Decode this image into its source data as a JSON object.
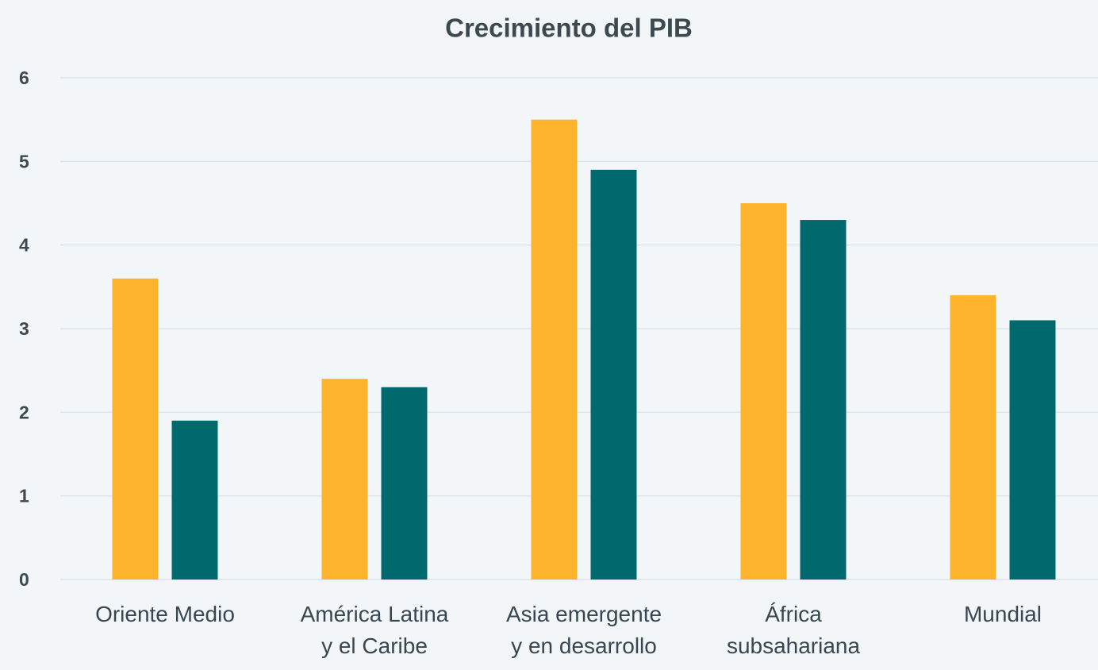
{
  "chart_data": {
    "type": "bar",
    "title": "Crecimiento del PIB",
    "categories": [
      [
        "Oriente Medio"
      ],
      [
        "América Latina",
        "y el Caribe"
      ],
      [
        "Asia emergente",
        "y en desarrollo"
      ],
      [
        "África",
        "subsahariana"
      ],
      [
        "Mundial"
      ]
    ],
    "series": [
      {
        "color": "#fdb42c",
        "values": [
          3.6,
          2.4,
          5.5,
          4.5,
          3.4
        ]
      },
      {
        "color": "#00696d",
        "values": [
          1.9,
          2.3,
          4.9,
          4.3,
          3.1
        ]
      }
    ],
    "ylim": [
      0,
      6
    ],
    "yticks": [
      0,
      1,
      2,
      3,
      4,
      5,
      6
    ],
    "grid": true
  }
}
